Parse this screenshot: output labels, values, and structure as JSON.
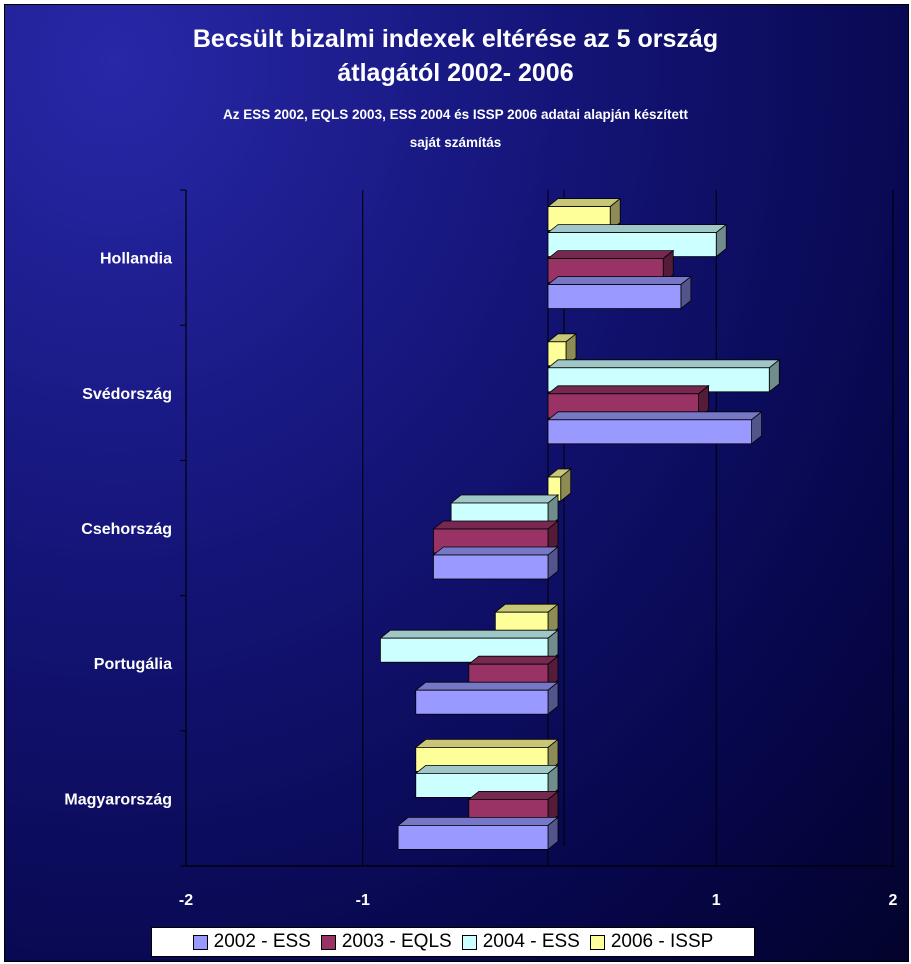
{
  "chart_data": {
    "type": "bar",
    "orientation": "horizontal",
    "title": "Becsült bizalmi indexek eltérése az 5 ország átlagától 2002- 2006",
    "title_lines": [
      "Becsült bizalmi indexek eltérése az 5 ország",
      "átlagától 2002- 2006"
    ],
    "subtitle": "Az ESS 2002, EQLS 2003, ESS 2004 és ISSP 2006 adatai alapján készített saját számítás",
    "subtitle_lines": [
      "Az ESS 2002, EQLS 2003, ESS 2004 és ISSP 2006 adatai alapján készített",
      "saját számítás"
    ],
    "categories": [
      "Hollandia",
      "Svédország",
      "Csehország",
      "Portugália",
      "Magyarország"
    ],
    "series": [
      {
        "name": "2002 - ESS",
        "color": "#9999ff",
        "values": [
          0.8,
          1.2,
          -0.6,
          -0.7,
          -0.8
        ]
      },
      {
        "name": "2003 - EQLS",
        "color": "#993366",
        "values": [
          0.7,
          0.9,
          -0.6,
          -0.4,
          -0.4
        ]
      },
      {
        "name": "2004 - ESS",
        "color": "#ccffff",
        "values": [
          1.0,
          1.3,
          -0.5,
          -0.9,
          -0.7
        ]
      },
      {
        "name": "2006 - ISSP",
        "color": "#ffff99",
        "values": [
          0.4,
          0.15,
          0.12,
          -0.25,
          -0.7
        ]
      }
    ],
    "xlim": [
      -2,
      2
    ],
    "xticks": [
      -2,
      -1,
      1,
      2
    ],
    "xtick_labels": [
      "-2",
      "-1",
      "1",
      "2"
    ],
    "grid": true,
    "legend_position": "bottom"
  }
}
